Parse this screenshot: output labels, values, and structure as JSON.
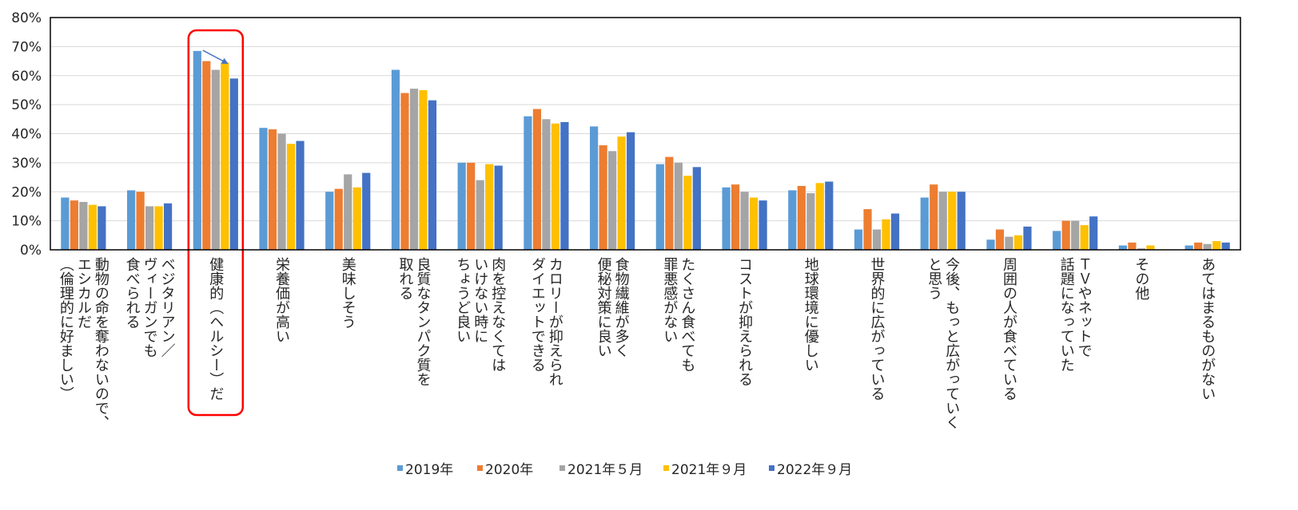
{
  "chart_data": {
    "type": "bar",
    "ylim": [
      0,
      80
    ],
    "y_ticks": [
      "0%",
      "10%",
      "20%",
      "30%",
      "40%",
      "50%",
      "60%",
      "70%",
      "80%"
    ],
    "grid": true,
    "legend_position": "bottom",
    "highlight": {
      "category_index": 2,
      "style": "rounded red box with arrow indicating decline"
    },
    "categories": [
      [
        "動物の命を奪わないので、",
        "エシカルだ",
        "（倫理的に好ましい）"
      ],
      [
        "ベジタリアン／",
        "ヴィーガンでも",
        "食べられる"
      ],
      [
        "健康的（ヘルシー）だ"
      ],
      [
        "栄養価が高い"
      ],
      [
        "美味しそう"
      ],
      [
        "良質なタンパク質を",
        "取れる"
      ],
      [
        "肉を控えなくては",
        "いけない時に",
        "ちょうど良い"
      ],
      [
        "カロリーが抑えられ",
        "ダイエットできる"
      ],
      [
        "食物繊維が多く",
        "便秘対策に良い"
      ],
      [
        "たくさん食べても",
        "罪悪感がない"
      ],
      [
        "コストが抑えられる"
      ],
      [
        "地球環境に優しい"
      ],
      [
        "世界的に広がっている"
      ],
      [
        "今後、もっと広がっていく",
        "と思う"
      ],
      [
        "周囲の人が食べている"
      ],
      [
        "ＴＶやネットで",
        "話題になっていた"
      ],
      [
        "その他"
      ],
      [
        "あてはまるものがない"
      ]
    ],
    "series": [
      {
        "name": "2019年",
        "color": "#5B9BD5",
        "values": [
          18.0,
          20.5,
          68.5,
          42.0,
          20.0,
          62.0,
          30.0,
          46.0,
          42.5,
          29.5,
          21.5,
          20.5,
          7.0,
          18.0,
          3.5,
          6.5,
          1.5,
          1.5
        ]
      },
      {
        "name": "2020年",
        "color": "#ED7D31",
        "values": [
          17.0,
          20.0,
          65.0,
          41.5,
          21.0,
          54.0,
          30.0,
          48.5,
          36.0,
          32.0,
          22.5,
          22.0,
          14.0,
          22.5,
          7.0,
          10.0,
          2.5,
          2.5
        ]
      },
      {
        "name": "2021年５月",
        "color": "#A5A5A5",
        "values": [
          16.5,
          15.0,
          62.0,
          40.0,
          26.0,
          55.5,
          24.0,
          45.0,
          34.0,
          30.0,
          20.0,
          19.5,
          7.0,
          20.0,
          4.5,
          10.0,
          0.5,
          2.0
        ]
      },
      {
        "name": "2021年９月",
        "color": "#FFC000",
        "values": [
          15.5,
          15.0,
          64.5,
          36.5,
          21.5,
          55.0,
          29.5,
          43.5,
          39.0,
          25.5,
          18.0,
          23.0,
          10.5,
          20.0,
          5.0,
          8.5,
          1.5,
          3.0
        ]
      },
      {
        "name": "2022年９月",
        "color": "#4472C4",
        "values": [
          15.0,
          16.0,
          59.0,
          37.5,
          26.5,
          51.5,
          29.0,
          44.0,
          40.5,
          28.5,
          17.0,
          23.5,
          12.5,
          20.0,
          8.0,
          11.5,
          0.0,
          2.5
        ]
      }
    ]
  }
}
